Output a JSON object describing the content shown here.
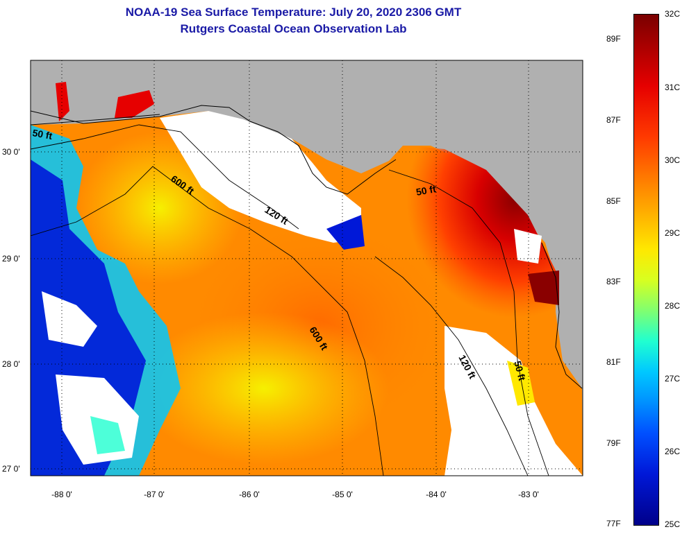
{
  "title": "NOAA-19 Sea Surface Temperature:  July 20, 2020 2306 GMT",
  "subtitle": "Rutgers Coastal Ocean Observation Lab",
  "axes": {
    "x_ticks": [
      "-88 0'",
      "-87 0'",
      "-86 0'",
      "-85 0'",
      "-84 0'",
      "-83 0'"
    ],
    "y_ticks": [
      "30 0'",
      "29 0'",
      "28 0'",
      "27 0'"
    ],
    "lon_range": [
      -88.3,
      -82.5
    ],
    "lat_range": [
      26.95,
      30.85
    ]
  },
  "contours": {
    "labels": [
      "50 ft",
      "600 ft",
      "120 ft",
      "50 ft",
      "600 ft",
      "120 ft",
      "50 ft"
    ]
  },
  "colorbar": {
    "celsius_ticks": [
      "32C",
      "31C",
      "30C",
      "29C",
      "28C",
      "27C",
      "26C",
      "25C"
    ],
    "fahrenheit_ticks": [
      "89F",
      "87F",
      "85F",
      "83F",
      "81F",
      "79F",
      "77F"
    ]
  },
  "colors": {
    "title": "#1a1aa6",
    "land": "#b0b0b0",
    "no_data": "#ffffff",
    "warm": "#b00000",
    "cool": "#0018d8"
  }
}
